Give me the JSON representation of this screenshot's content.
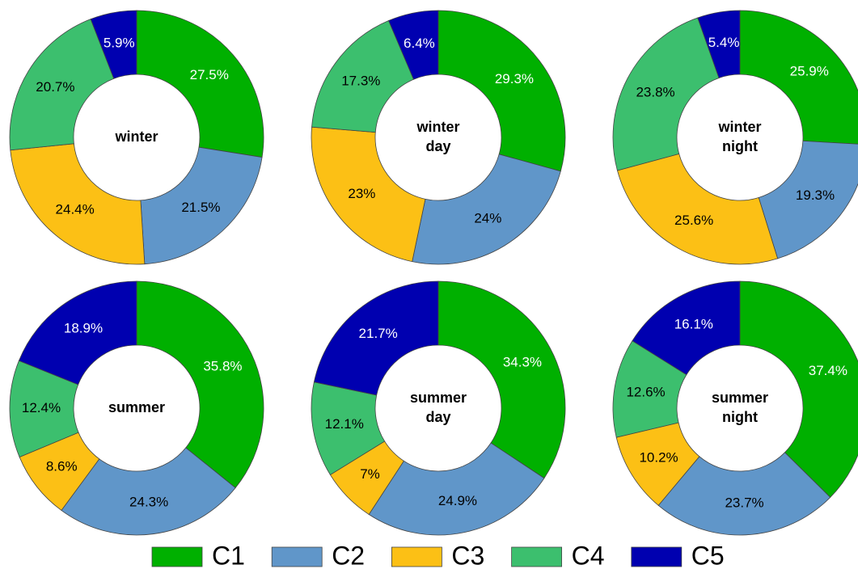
{
  "chart_data": [
    {
      "type": "pie",
      "title": "winter",
      "categories": [
        "C1",
        "C2",
        "C3",
        "C4",
        "C5"
      ],
      "colors": [
        "#00b000",
        "#6096c9",
        "#fcc015",
        "#3cbf6e",
        "#0000b0"
      ],
      "values": [
        27.5,
        21.5,
        24.4,
        20.7,
        5.9
      ],
      "value_labels": [
        "27.5%",
        "21.5%",
        "24.4%",
        "20.7%",
        "5.9%"
      ]
    },
    {
      "type": "pie",
      "title": "winter day",
      "categories": [
        "C1",
        "C2",
        "C3",
        "C4",
        "C5"
      ],
      "colors": [
        "#00b000",
        "#6096c9",
        "#fcc015",
        "#3cbf6e",
        "#0000b0"
      ],
      "values": [
        29.3,
        24,
        23,
        17.3,
        6.4
      ],
      "value_labels": [
        "29.3%",
        "24%",
        "23%",
        "17.3%",
        "6.4%"
      ]
    },
    {
      "type": "pie",
      "title": "winter night",
      "categories": [
        "C1",
        "C2",
        "C3",
        "C4",
        "C5"
      ],
      "colors": [
        "#00b000",
        "#6096c9",
        "#fcc015",
        "#3cbf6e",
        "#0000b0"
      ],
      "values": [
        25.9,
        19.3,
        25.6,
        23.8,
        5.4
      ],
      "value_labels": [
        "25.9%",
        "19.3%",
        "25.6%",
        "23.8%",
        "5.4%"
      ]
    },
    {
      "type": "pie",
      "title": "summer",
      "categories": [
        "C1",
        "C2",
        "C3",
        "C4",
        "C5"
      ],
      "colors": [
        "#00b000",
        "#6096c9",
        "#fcc015",
        "#3cbf6e",
        "#0000b0"
      ],
      "values": [
        35.8,
        24.3,
        8.6,
        12.4,
        18.9
      ],
      "value_labels": [
        "35.8%",
        "24.3%",
        "8.6%",
        "12.4%",
        "18.9%"
      ]
    },
    {
      "type": "pie",
      "title": "summer day",
      "categories": [
        "C1",
        "C2",
        "C3",
        "C4",
        "C5"
      ],
      "colors": [
        "#00b000",
        "#6096c9",
        "#fcc015",
        "#3cbf6e",
        "#0000b0"
      ],
      "values": [
        34.3,
        24.9,
        7,
        12.1,
        21.7
      ],
      "value_labels": [
        "34.3%",
        "24.9%",
        "7%",
        "12.1%",
        "21.7%"
      ]
    },
    {
      "type": "pie",
      "title": "summer night",
      "categories": [
        "C1",
        "C2",
        "C3",
        "C4",
        "C5"
      ],
      "colors": [
        "#00b000",
        "#6096c9",
        "#fcc015",
        "#3cbf6e",
        "#0000b0"
      ],
      "values": [
        37.4,
        23.7,
        10.2,
        12.6,
        16.1
      ],
      "value_labels": [
        "37.4%",
        "23.7%",
        "10.2%",
        "12.6%",
        "16.1%"
      ]
    }
  ]
}
